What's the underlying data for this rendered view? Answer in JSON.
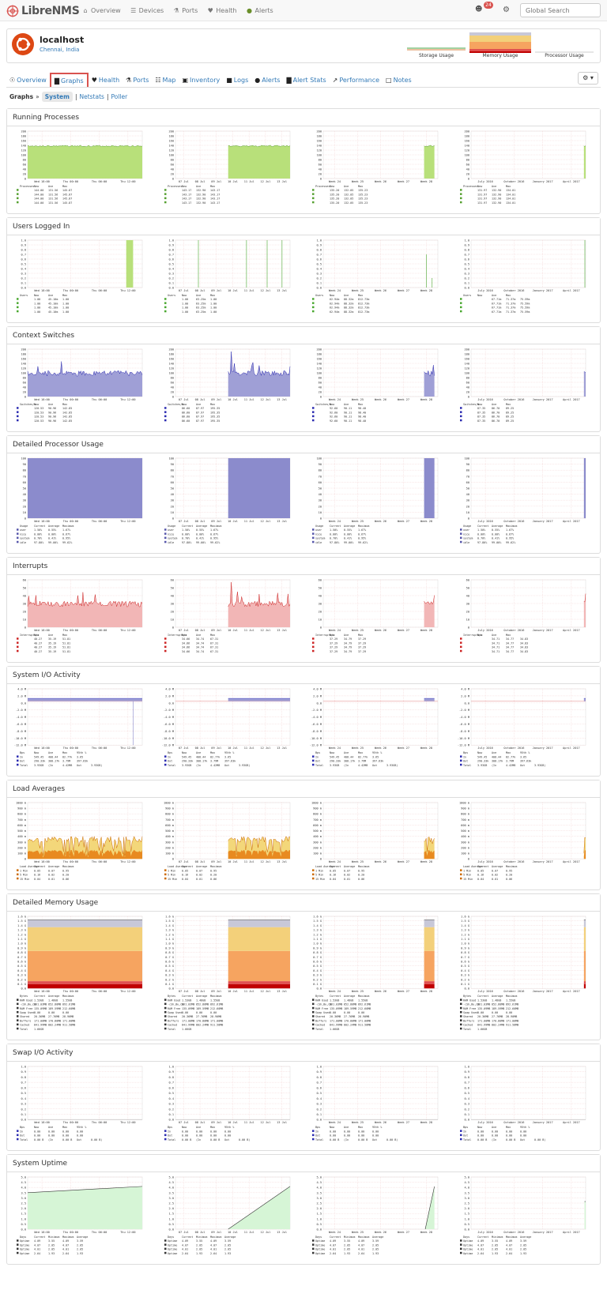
{
  "nav": {
    "brand": "LibreNMS",
    "items": [
      {
        "icon": "home-icon",
        "label": "Overview"
      },
      {
        "icon": "server-icon",
        "label": "Devices"
      },
      {
        "icon": "link-icon",
        "label": "Ports"
      },
      {
        "icon": "heartbeat-icon",
        "label": "Health"
      },
      {
        "icon": "alert-icon",
        "label": "Alerts"
      }
    ],
    "notification_count": "24",
    "search_placeholder": "Global Search"
  },
  "device": {
    "name": "localhost",
    "location": "Chennai, India",
    "mini_graphs": [
      "Storage Usage",
      "Memory Usage",
      "Processor Usage"
    ]
  },
  "tabs": [
    {
      "icon": "lightbulb-icon",
      "label": "Overview",
      "active": false
    },
    {
      "icon": "bar-chart-icon",
      "label": "Graphs",
      "active": true
    },
    {
      "icon": "heartbeat-icon",
      "label": "Health",
      "active": false
    },
    {
      "icon": "link-icon",
      "label": "Ports",
      "active": false
    },
    {
      "icon": "sitemap-icon",
      "label": "Map",
      "active": false
    },
    {
      "icon": "cube-icon",
      "label": "Inventory",
      "active": false
    },
    {
      "icon": "book-icon",
      "label": "Logs",
      "active": false
    },
    {
      "icon": "alert-icon",
      "label": "Alerts",
      "active": false
    },
    {
      "icon": "bar-chart-icon",
      "label": "Alert Stats",
      "active": false
    },
    {
      "icon": "line-chart-icon",
      "label": "Performance",
      "active": false
    },
    {
      "icon": "file-icon",
      "label": "Notes",
      "active": false
    }
  ],
  "subnav": {
    "label": "Graphs",
    "active": "System",
    "links": [
      "Netstats",
      "Poller"
    ]
  },
  "periods": [
    [
      "Wed 18:00",
      "Thu 00:00",
      "Thu 06:00",
      "Thu 12:00"
    ],
    [
      "07 Jul",
      "08 Jul",
      "09 Jul",
      "10 Jul",
      "11 Jul",
      "12 Jul",
      "13 Jul"
    ],
    [
      "Week 24",
      "Week 25",
      "Week 26",
      "Week 27",
      "Week 28"
    ],
    [
      "July 2016",
      "October 2016",
      "January 2017",
      "April 2017"
    ]
  ],
  "sections": [
    {
      "title": "Running Processes",
      "top": 137,
      "height": 134,
      "fill": "#b8e07a",
      "line": "#55a030",
      "kind": "proc",
      "yt": [
        "200",
        "180",
        "160",
        "140",
        "120",
        "100",
        "80",
        "60",
        "40",
        "20",
        "0"
      ],
      "legend": [
        [
          "Processes",
          "New",
          "Ave",
          "Max"
        ],
        [
          "",
          "144.00",
          "131.56",
          "145.87"
        ],
        [
          "",
          "143.17",
          "132.90",
          "143.17"
        ],
        [
          "",
          "135.20",
          "132.05",
          "135.23"
        ],
        [
          "",
          "131.97",
          "132.90",
          "134.01"
        ]
      ]
    },
    {
      "title": "Users Logged In",
      "top": 275,
      "height": 134,
      "fill": "#b8e07a",
      "line": "#4aa830",
      "kind": "users",
      "yt": [
        "1.0",
        "0.9",
        "0.8",
        "0.7",
        "0.6",
        "0.5",
        "0.4",
        "0.3",
        "0.2",
        "0.1",
        "0.0"
      ],
      "legend": [
        [
          "Users",
          "Now",
          "Ave",
          "Max"
        ],
        [
          "",
          "1.00",
          "45.10m",
          "1.00"
        ],
        [
          "",
          "1.00",
          "63.25m",
          "1.00"
        ],
        [
          "",
          "62.94m",
          "88.32m",
          "812.73m"
        ],
        [
          "",
          "",
          "67.71m",
          "71.37m",
          "75.59m"
        ]
      ]
    },
    {
      "title": "Context Switches",
      "top": 413,
      "height": 134,
      "fill": "#9f9fd6",
      "line": "#2a2ab0",
      "kind": "ctx",
      "yt": [
        "200",
        "180",
        "160",
        "140",
        "120",
        "100",
        "80",
        "60",
        "40",
        "20",
        "0"
      ],
      "legend": [
        [
          "Switches/s",
          "Now",
          "Ave",
          "Max"
        ],
        [
          "",
          "120.53",
          "90.96",
          "142.85"
        ],
        [
          "",
          "86.60",
          "87.97",
          "195.35"
        ],
        [
          "",
          "92.60",
          "90.11",
          "98.40"
        ],
        [
          "",
          "87.35",
          "86.70",
          "89.25"
        ]
      ]
    },
    {
      "title": "Detailed Processor Usage",
      "top": 551,
      "height": 150,
      "fill": "#8b8bcc",
      "line": "#5555aa",
      "kind": "full",
      "yt": [
        "100",
        "90",
        "80",
        "70",
        "60",
        "50",
        "40",
        "30",
        "20",
        "10",
        "0"
      ],
      "legend": [
        [
          "Usage",
          "Current",
          "Average",
          "Maximum"
        ],
        [
          "user",
          "1.50%",
          "0.55%",
          "1.67%"
        ],
        [
          "nice",
          "0.00%",
          "0.00%",
          "0.67%"
        ],
        [
          "system",
          "0.70%",
          "0.41%",
          "0.95%"
        ],
        [
          "idle",
          "97.80%",
          "99.00%",
          "99.62%"
        ]
      ]
    },
    {
      "title": "Interrupts",
      "top": 705,
      "height": 134,
      "fill": "#f2b6b6",
      "line": "#cc2222",
      "kind": "ctx",
      "yt": [
        "60",
        "50",
        "40",
        "30",
        "20",
        "10",
        "0"
      ],
      "legend": [
        [
          "Interrupts/s",
          "Now",
          "Ave",
          "Max"
        ],
        [
          "",
          "40.27",
          "35.19",
          "51.81"
        ],
        [
          "",
          "34.66",
          "34.74",
          "67.31"
        ],
        [
          "",
          "37.29",
          "34.79",
          "37.29"
        ],
        [
          "",
          "",
          "34.71",
          "34.77",
          "34.83"
        ]
      ]
    },
    {
      "title": "System I/O Activity",
      "top": 843,
      "height": 140,
      "fill": "#9f9fd6",
      "line": "#2a2ab0",
      "kind": "io",
      "yt": [
        "4.0 M",
        "2.0 M",
        "0.0",
        "-2.0 M",
        "-4.0 M",
        "-6.0 M",
        "-8.0 M",
        "-10.0 M",
        "-12.0 M"
      ],
      "legend": [
        [
          "Bps",
          "Now",
          "Ave",
          "Max",
          "95th %"
        ],
        [
          "In",
          "549.45",
          "408.44",
          "82.77k",
          "3.65"
        ],
        [
          "Out",
          "290.33k",
          "308.17k",
          "3.79M",
          "397.63k"
        ],
        [
          "Total",
          "3.93GB",
          "(In",
          "4.42MB",
          "Out",
          "3.93GB)"
        ]
      ]
    },
    {
      "title": "Load Averages",
      "top": 987,
      "height": 140,
      "fill": "#f3d77a",
      "line": "#cc6a00",
      "kind": "load",
      "yt": [
        "1000 m",
        "900 m",
        "800 m",
        "700 m",
        "600 m",
        "500 m",
        "400 m",
        "300 m",
        "200 m",
        "100 m",
        "0"
      ],
      "legend": [
        [
          "Load Average",
          "Current",
          "Average",
          "Maximum"
        ],
        [
          "1 Min",
          "0.05",
          "0.07",
          "0.95"
        ],
        [
          "5 Min",
          "0.16",
          "0.02",
          "0.20"
        ],
        [
          "15 Min",
          "0.04",
          "0.01",
          "0.06"
        ]
      ]
    },
    {
      "title": "Detailed Memory Usage",
      "top": 1131,
      "height": 186,
      "fill": "#f6a460",
      "line": "#333333",
      "kind": "mem",
      "yt": [
        "1.6 G",
        "1.5 G",
        "1.4 G",
        "1.3 G",
        "1.2 G",
        "1.1 G",
        "1.0 G",
        "0.9 G",
        "0.8 G",
        "0.7 G",
        "0.6 G",
        "0.5 G",
        "0.4 G",
        "0.3 G",
        "0.2 G",
        "0.1 G",
        "0.0"
      ],
      "legend": [
        [
          "Bytes",
          "Current",
          "Average",
          "Maximum"
        ],
        [
          "RAM Used",
          "1.53GB",
          "1.48GB",
          "1.55GB"
        ],
        [
          "-(Sh,Bu,Ca",
          "861.03MB",
          "852.80MB",
          "892.61MB"
        ],
        [
          "RAM Free",
          "135.09MB",
          "189.59MB",
          "212.60MB"
        ],
        [
          "Swap Used",
          "0.00",
          "0.00",
          "0.00"
        ],
        [
          "Shared",
          "20.36MB",
          "27.76MB",
          "28.90MB"
        ],
        [
          "Buffers",
          "171.00MB",
          "170.80MB",
          "171.00MB"
        ],
        [
          "Cached",
          "841.99MB",
          "802.24MB",
          "911.58MB"
        ],
        [
          "Total",
          "1.66GB",
          "",
          ""
        ]
      ]
    },
    {
      "title": "Swap I/O Activity",
      "top": 1321,
      "height": 136,
      "fill": "#9f9fd6",
      "line": "#2a2ab0",
      "kind": "empty",
      "yt": [
        "1.0",
        "0.9",
        "0.8",
        "0.7",
        "0.6",
        "0.5",
        "0.4",
        "0.3",
        "0.2",
        "0.1",
        "0.0"
      ],
      "legend": [
        [
          "Bps",
          "Now",
          "Ave",
          "Max",
          "95th %"
        ],
        [
          "In",
          "0.00",
          "0.00",
          "0.00",
          "0.00"
        ],
        [
          "Out",
          "0.00",
          "0.00",
          "0.00",
          "0.00"
        ],
        [
          "Total",
          "0.00 B",
          "(In",
          "0.00 B",
          "Out",
          "0.00 B)"
        ]
      ]
    },
    {
      "title": "System Uptime",
      "top": 1461,
      "height": 140,
      "fill": "#d6f5d6",
      "line": "#333333",
      "kind": "uptime",
      "yt": [
        "5.0",
        "4.5",
        "4.0",
        "3.5",
        "3.0",
        "2.5",
        "2.0",
        "1.5",
        "1.0",
        "0.5",
        "0.0"
      ],
      "legend": [
        [
          "Days",
          "Current",
          "Minimum",
          "Maximum",
          "Average"
        ],
        [
          "Uptime",
          "4.09",
          "3.55",
          "4.09",
          "3.59"
        ],
        [
          "Uptime",
          "4.07",
          "2.05",
          "4.07",
          "2.05"
        ],
        [
          "Uptime",
          "4.01",
          "2.05",
          "4.01",
          "2.05"
        ],
        [
          "Uptime",
          "2.64",
          "1.93",
          "2.64",
          "1.93"
        ]
      ]
    }
  ]
}
